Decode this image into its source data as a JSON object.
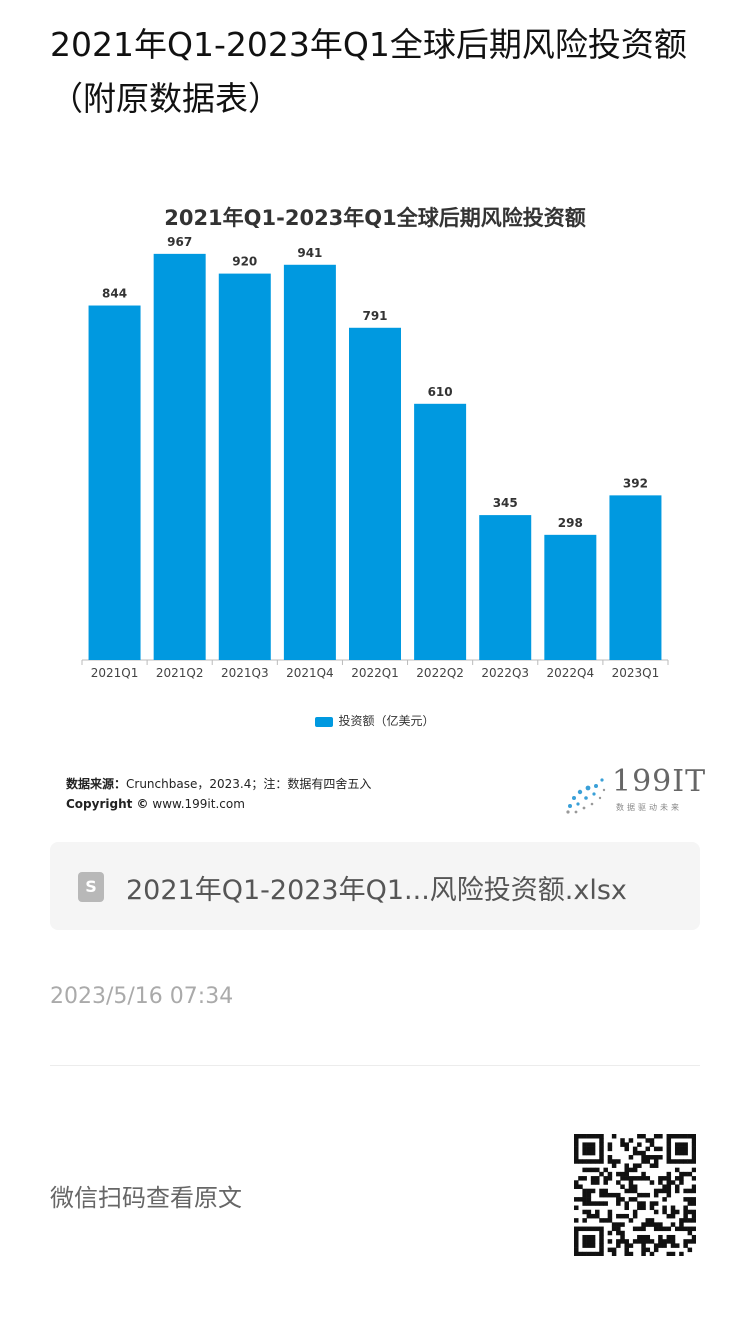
{
  "page": {
    "title": "2021年Q1-2023年Q1全球后期风险投资额（附原数据表）"
  },
  "chart_data": {
    "type": "bar",
    "title": "2021年Q1-2023年Q1全球后期风险投资额",
    "categories": [
      "2021Q1",
      "2021Q2",
      "2021Q3",
      "2021Q4",
      "2022Q1",
      "2022Q2",
      "2022Q3",
      "2022Q4",
      "2023Q1"
    ],
    "series": [
      {
        "name": "投资额（亿美元）",
        "values": [
          844,
          967,
          920,
          941,
          791,
          610,
          345,
          298,
          392
        ]
      }
    ],
    "color": "#0099e0",
    "ylim": [
      0,
      1000
    ],
    "grid": false,
    "legend": "bottom"
  },
  "source": {
    "label": "数据来源：",
    "text": "Crunchbase，2023.4；注：数据有四舍五入",
    "copyright_label": "Copyright ©",
    "copyright_url": "www.199it.com"
  },
  "logo": {
    "name": "199IT",
    "tagline": "数据驱动未来"
  },
  "file": {
    "icon": "file-s-icon",
    "icon_glyph": "S",
    "name": "2021年Q1-2023年Q1...风险投资额.xlsx"
  },
  "timestamp": "2023/5/16 07:34",
  "wechat": {
    "text": "微信扫码查看原文"
  }
}
